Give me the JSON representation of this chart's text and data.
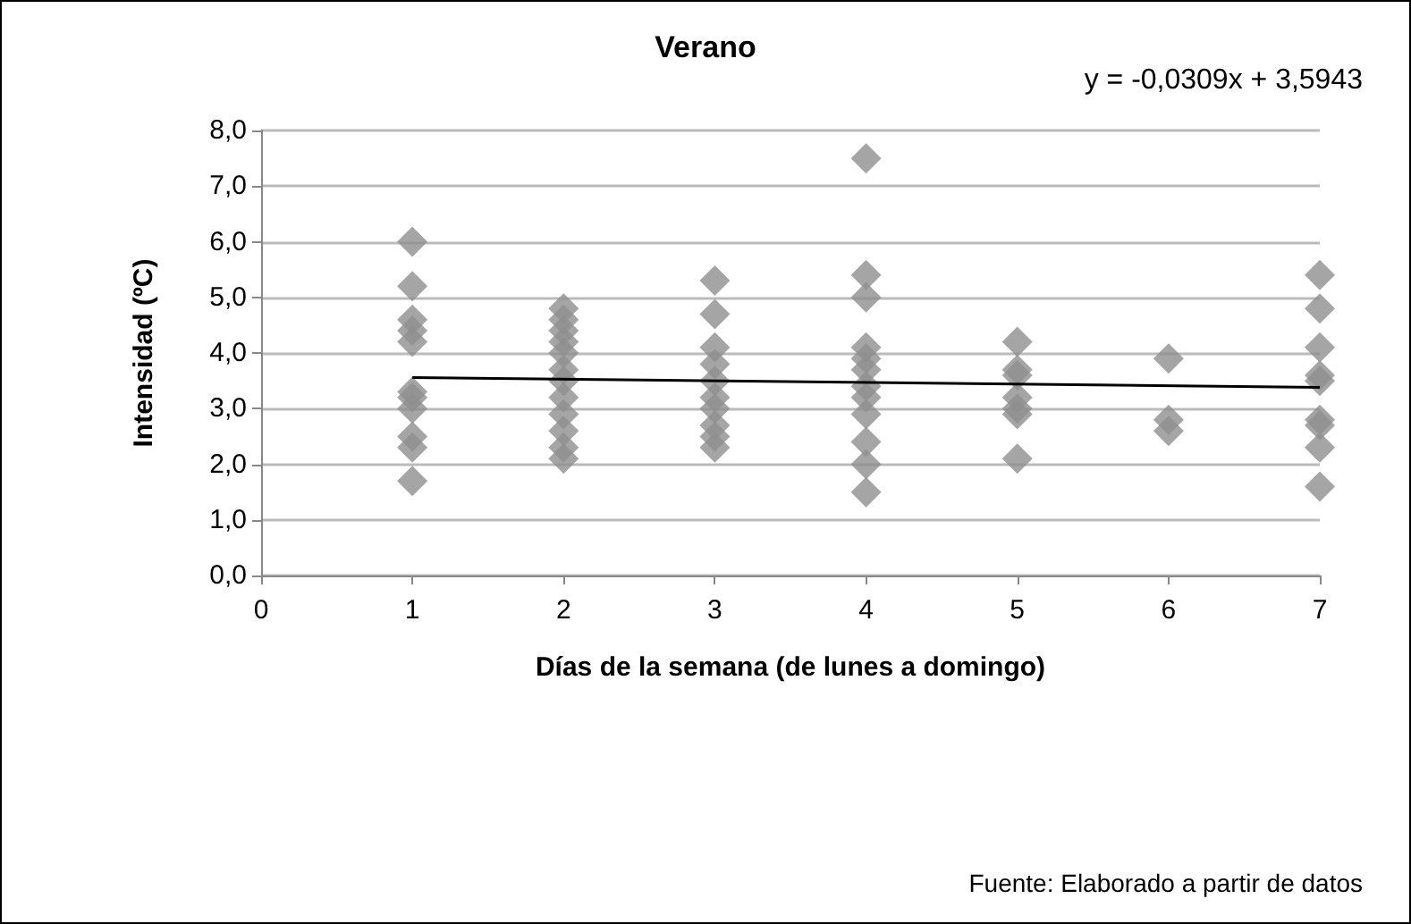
{
  "chart_data": {
    "type": "scatter",
    "title": "Verano",
    "xlabel": "Días de la semana (de lunes a domingo)",
    "ylabel": "Intensidad (ºC)",
    "annotations": [
      "y = -0,0309x + 3,5943",
      "Fuente: Elaborado a partir de datos"
    ],
    "series": [
      {
        "color": "#8e8e90",
        "marker": "diamond",
        "x": [
          1,
          1,
          1,
          1,
          1,
          1,
          1,
          1,
          1,
          1,
          1,
          2,
          2,
          2,
          2,
          2,
          2,
          2,
          2,
          2,
          2,
          2,
          2,
          3,
          3,
          3,
          3,
          3,
          3,
          3,
          3,
          3,
          3,
          4,
          4,
          4,
          4,
          4,
          4,
          4,
          4,
          4,
          4,
          4,
          4,
          5,
          5,
          5,
          5,
          5,
          5,
          5,
          6,
          6,
          6,
          7,
          7,
          7,
          7,
          7,
          7,
          7,
          7,
          7
        ],
        "values": [
          6.0,
          5.2,
          4.6,
          4.4,
          4.2,
          3.3,
          3.2,
          3.0,
          2.5,
          2.3,
          1.7,
          4.8,
          4.6,
          4.4,
          4.2,
          4.0,
          3.7,
          3.5,
          3.2,
          2.9,
          2.6,
          2.3,
          2.1,
          5.3,
          4.7,
          4.1,
          3.8,
          3.5,
          3.2,
          3.0,
          2.7,
          2.5,
          2.3,
          7.5,
          5.4,
          5.0,
          4.1,
          3.9,
          3.7,
          3.4,
          3.2,
          2.9,
          2.4,
          2.0,
          1.5,
          4.2,
          3.7,
          3.6,
          3.2,
          3.0,
          2.9,
          2.1,
          3.9,
          2.8,
          2.6,
          5.4,
          4.8,
          4.1,
          3.6,
          3.5,
          2.8,
          2.7,
          2.3,
          1.6
        ]
      },
      {
        "type": "line",
        "color": "#000000",
        "marker": "none",
        "x": [
          1,
          7
        ],
        "values": [
          3.56,
          3.38
        ]
      }
    ],
    "xlim": [
      0,
      7
    ],
    "xticks": [
      0,
      1,
      2,
      3,
      4,
      5,
      6,
      7
    ],
    "ylim": [
      0,
      8
    ],
    "yticks": [
      {
        "value": 0,
        "label": "0,0"
      },
      {
        "value": 1,
        "label": "1,0"
      },
      {
        "value": 2,
        "label": "2,0"
      },
      {
        "value": 3,
        "label": "3,0"
      },
      {
        "value": 4,
        "label": "4,0"
      },
      {
        "value": 5,
        "label": "5,0"
      },
      {
        "value": 6,
        "label": "6,0"
      },
      {
        "value": 7,
        "label": "7,0"
      },
      {
        "value": 8,
        "label": "8,0"
      }
    ],
    "grid": "y"
  }
}
